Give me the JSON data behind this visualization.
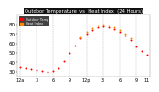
{
  "title": "Outdoor Temperature  vs  Heat Index  (24 Hours)",
  "bg_color": "#ffffff",
  "plot_bg": "#ffffff",
  "temp_color": "#ff0000",
  "heat_color": "#ff8800",
  "ylim": [
    25,
    90
  ],
  "ylabel_fontsize": 4,
  "xlabel_fontsize": 3.5,
  "title_fontsize": 3.8,
  "grid_color": "#aaaaaa",
  "hours": [
    0,
    1,
    2,
    3,
    4,
    5,
    6,
    7,
    8,
    9,
    10,
    11,
    12,
    13,
    14,
    15,
    16,
    17,
    18,
    19,
    20,
    21,
    22,
    23
  ],
  "temp": [
    35,
    34,
    33,
    32,
    31,
    30,
    31,
    34,
    41,
    50,
    58,
    65,
    70,
    74,
    77,
    78,
    77,
    75,
    72,
    68,
    63,
    57,
    52,
    48
  ],
  "heat": [
    null,
    null,
    null,
    null,
    null,
    null,
    null,
    null,
    null,
    null,
    null,
    66,
    72,
    76,
    79,
    80,
    79,
    77,
    74,
    70,
    65,
    null,
    null,
    null
  ],
  "yticks": [
    30,
    40,
    50,
    60,
    70,
    80
  ],
  "legend_temp": "Outdoor Temp",
  "legend_heat": "Heat Index",
  "title_bg": "#111111",
  "title_fg": "#ffffff"
}
